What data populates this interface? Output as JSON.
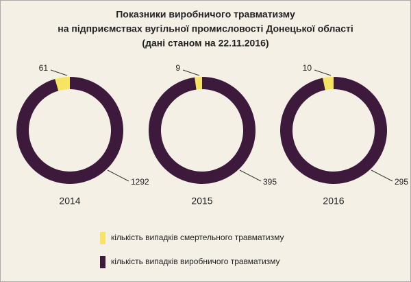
{
  "chart_data": {
    "type": "donut",
    "title": [
      "Показники виробничого травматизму",
      "на підприємствах вугільної промисловості Донецької області",
      "(дані станом на 22.11.2016)"
    ],
    "categories": [
      "2014",
      "2015",
      "2016"
    ],
    "series": [
      {
        "name": "кількість випадків смертельного травматизму",
        "color": "#f7e463",
        "values": [
          61,
          9,
          10
        ]
      },
      {
        "name": "кількість випадків виробничого травматизму",
        "color": "#3d1a3c",
        "values": [
          1292,
          395,
          295
        ]
      }
    ]
  }
}
